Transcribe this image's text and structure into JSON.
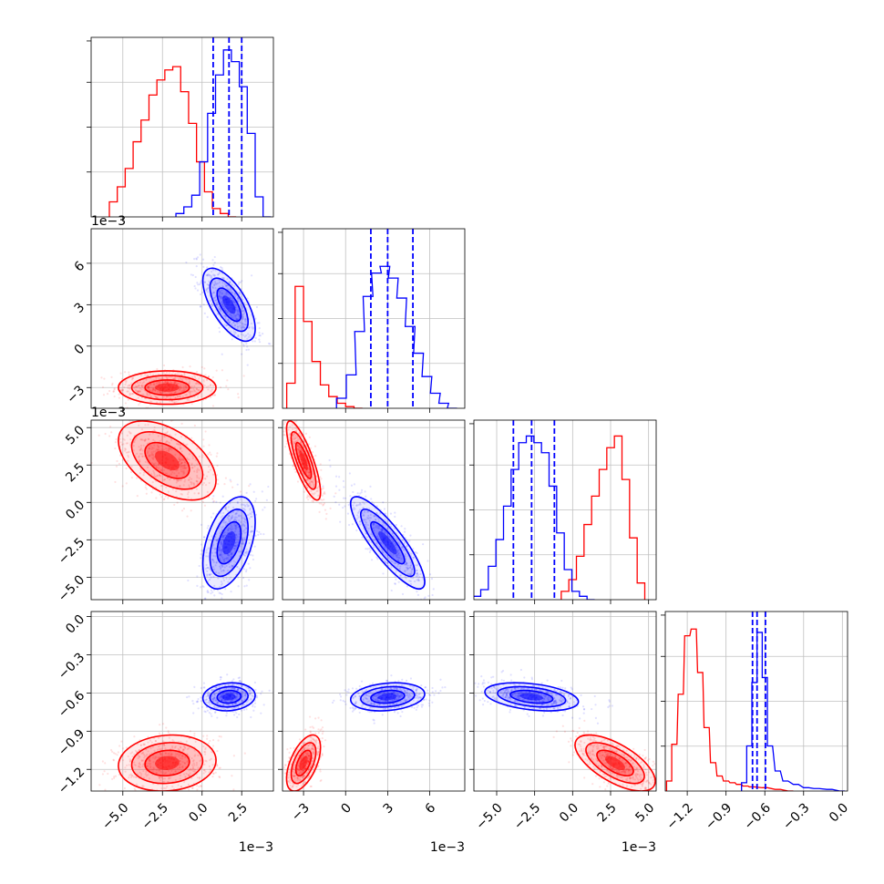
{
  "colors": {
    "red": "#ff0000",
    "blue": "#0000ff",
    "grid": "#c0c0c0"
  },
  "chart_data": {
    "type": "corner",
    "parameters": 4,
    "grid": true,
    "offset_text": "1e−3",
    "axes": {
      "p0": {
        "range": [
          -7.0,
          4.5
        ],
        "ticks": [
          "−5.0",
          "−2.5",
          "0.0",
          "2.5"
        ],
        "tick_values": [
          -5.0,
          -2.5,
          0.0,
          2.5
        ],
        "scale": "1e−3"
      },
      "p1": {
        "range": [
          -4.5,
          8.5
        ],
        "ticks": [
          "−3",
          "0",
          "3",
          "6"
        ],
        "tick_values": [
          -3,
          0,
          3,
          6
        ],
        "scale": "1e−3"
      },
      "p2": {
        "range": [
          -6.5,
          5.5
        ],
        "ticks": [
          "−5.0",
          "−2.5",
          "0.0",
          "2.5",
          "5.0"
        ],
        "tick_values": [
          -5.0,
          -2.5,
          0.0,
          2.5,
          5.0
        ],
        "scale": "1e−3"
      },
      "p3": {
        "range": [
          -1.37,
          0.04
        ],
        "ticks": [
          "−1.2",
          "−0.9",
          "−0.6",
          "−0.3",
          "0.0"
        ],
        "tick_values": [
          -1.2,
          -0.9,
          -0.6,
          -0.3,
          0.0
        ]
      }
    },
    "series": [
      {
        "color": "red",
        "means": [
          -2.2,
          -3.0,
          2.8,
          -1.15
        ],
        "sds": [
          1.4,
          0.55,
          1.2,
          0.1
        ],
        "histograms": [
          {
            "x": [
              -5.6,
              -5.1,
              -4.6,
              -4.1,
              -3.6,
              -3.1,
              -2.6,
              -2.1,
              -1.6,
              -1.1,
              -0.6,
              -0.1,
              0.4,
              0.9,
              1.4,
              1.9
            ],
            "counts": [
              0.09,
              0.18,
              0.29,
              0.45,
              0.58,
              0.73,
              0.82,
              0.88,
              0.9,
              0.75,
              0.56,
              0.33,
              0.15,
              0.05,
              0.02,
              0.0
            ]
          },
          {
            "x": [
              -3.9,
              -3.3,
              -2.7,
              -2.1,
              -1.5,
              -0.9,
              -0.3,
              0.3,
              0.9
            ],
            "counts": [
              0.15,
              0.73,
              0.52,
              0.28,
              0.14,
              0.07,
              0.03,
              0.01,
              0.0
            ]
          },
          {
            "x": [
              -0.5,
              0.0,
              0.5,
              1.0,
              1.5,
              2.0,
              2.5,
              3.0,
              3.5,
              4.0,
              4.5
            ],
            "counts": [
              0.05,
              0.12,
              0.26,
              0.45,
              0.62,
              0.78,
              0.91,
              0.98,
              0.72,
              0.37,
              0.1
            ]
          },
          {
            "x": [
              -1.34,
              -1.3,
              -1.25,
              -1.2,
              -1.15,
              -1.1,
              -1.05,
              -1.0,
              -0.95,
              -0.9,
              -0.85,
              -0.8,
              -0.75,
              -0.7,
              -0.6,
              -0.5,
              -0.4
            ],
            "counts": [
              0.06,
              0.28,
              0.58,
              0.93,
              0.97,
              0.71,
              0.38,
              0.17,
              0.09,
              0.06,
              0.05,
              0.04,
              0.03,
              0.025,
              0.02,
              0.01,
              0.0
            ]
          }
        ],
        "quantile_lines": []
      },
      {
        "color": "blue",
        "means": [
          1.7,
          3.0,
          -2.7,
          -0.63
        ],
        "sds": [
          0.75,
          1.2,
          1.4,
          0.05
        ],
        "histograms": [
          {
            "x": [
              -1.4,
              -0.9,
              -0.4,
              0.1,
              0.6,
              1.1,
              1.6,
              2.1,
              2.6,
              3.1,
              3.6,
              4.1
            ],
            "counts": [
              0.02,
              0.06,
              0.13,
              0.33,
              0.62,
              0.85,
              1.0,
              0.93,
              0.78,
              0.5,
              0.12,
              0.0
            ]
          },
          {
            "x": [
              -0.3,
              0.4,
              1.0,
              1.6,
              2.2,
              2.8,
              3.4,
              4.0,
              4.6,
              5.2,
              5.8,
              6.4,
              7.0,
              7.6
            ],
            "counts": [
              0.06,
              0.2,
              0.46,
              0.67,
              0.81,
              0.85,
              0.78,
              0.66,
              0.49,
              0.33,
              0.19,
              0.09,
              0.03,
              0.0
            ]
          },
          {
            "x": [
              -6.3,
              -5.8,
              -5.3,
              -4.8,
              -4.3,
              -3.8,
              -3.3,
              -2.8,
              -2.3,
              -1.8,
              -1.3,
              -0.8,
              -0.3,
              0.2,
              0.7,
              1.2
            ],
            "counts": [
              0.02,
              0.06,
              0.2,
              0.36,
              0.56,
              0.78,
              0.94,
              0.98,
              0.94,
              0.88,
              0.68,
              0.4,
              0.18,
              0.05,
              0.02,
              0.0
            ]
          },
          {
            "x": [
              -0.76,
              -0.72,
              -0.68,
              -0.64,
              -0.6,
              -0.56,
              -0.5,
              -0.44,
              -0.36,
              -0.28,
              -0.2,
              -0.1,
              0.0
            ],
            "counts": [
              0.05,
              0.27,
              0.65,
              0.95,
              0.68,
              0.27,
              0.12,
              0.06,
              0.04,
              0.02,
              0.015,
              0.01,
              0.0
            ]
          }
        ],
        "quantile_lines": [
          [
            0.7,
            1.7,
            2.5
          ],
          [
            1.8,
            3.0,
            4.8
          ],
          [
            -3.9,
            -2.7,
            -1.2
          ],
          [
            -0.695,
            -0.66,
            -0.595
          ]
        ]
      }
    ]
  }
}
